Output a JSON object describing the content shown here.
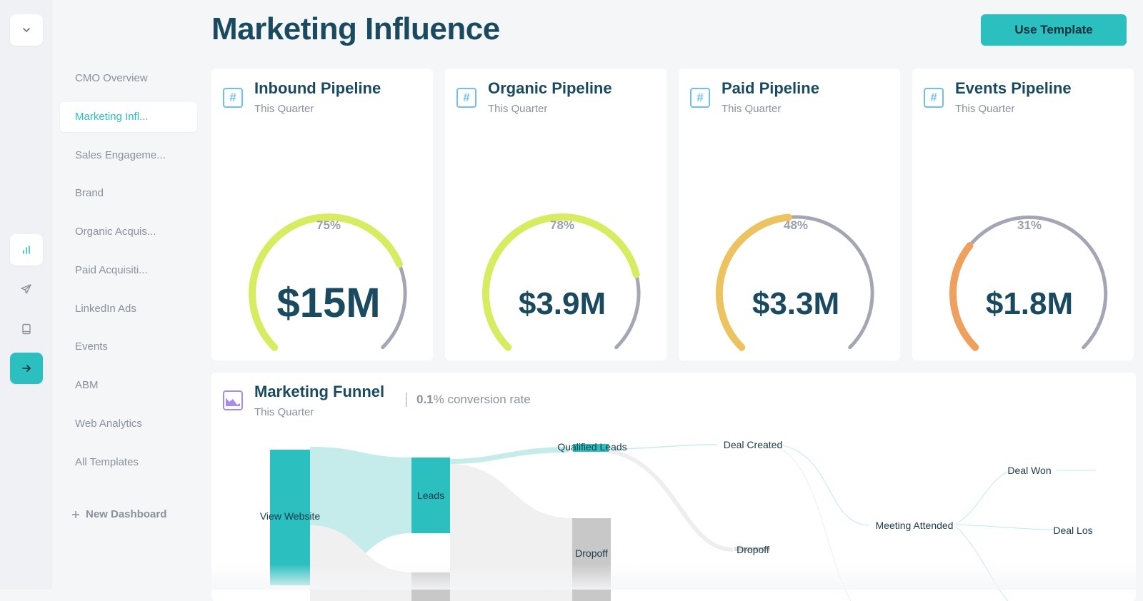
{
  "page": {
    "title": "Marketing Influence",
    "use_template_label": "Use Template"
  },
  "rail": {
    "icons": [
      "chevron-down-icon",
      "bar-chart-icon",
      "send-icon",
      "book-icon",
      "arrow-right-icon"
    ]
  },
  "sidebar": {
    "items": [
      {
        "label": "CMO Overview",
        "active": false
      },
      {
        "label": "Marketing Infl...",
        "active": true
      },
      {
        "label": "Sales Engageme...",
        "active": false
      },
      {
        "label": "Brand",
        "active": false
      },
      {
        "label": "Organic Acquis...",
        "active": false
      },
      {
        "label": "Paid Acquisiti...",
        "active": false
      },
      {
        "label": "LinkedIn Ads",
        "active": false
      },
      {
        "label": "Events",
        "active": false
      },
      {
        "label": "ABM",
        "active": false
      },
      {
        "label": "Web Analytics",
        "active": false
      },
      {
        "label": "All Templates",
        "active": false
      }
    ],
    "new_dashboard_label": "New Dashboard"
  },
  "cards": [
    {
      "title": "Inbound Pipeline",
      "subtitle": "This Quarter",
      "percent_label": "75%",
      "percent": 75,
      "value": "$15M",
      "color": "#d7ec5f"
    },
    {
      "title": "Organic Pipeline",
      "subtitle": "This Quarter",
      "percent_label": "78%",
      "percent": 78,
      "value": "$3.9M",
      "color": "#d7ec5f"
    },
    {
      "title": "Paid Pipeline",
      "subtitle": "This Quarter",
      "percent_label": "48%",
      "percent": 48,
      "value": "$3.3M",
      "color": "#ecc35e"
    },
    {
      "title": "Events Pipeline",
      "subtitle": "This Quarter",
      "percent_label": "31%",
      "percent": 31,
      "value": "$1.8M",
      "color": "#f0a05e"
    }
  ],
  "funnel": {
    "title": "Marketing Funnel",
    "subtitle": "This Quarter",
    "rate_value": "0.1",
    "rate_suffix": "% conversion rate",
    "nodes": {
      "view_website": "View Website",
      "leads": "Leads",
      "qualified_leads": "Qualified Leads",
      "dropoff_1": "Dropoff",
      "deal_created": "Deal Created",
      "dropoff_2": "Dropoff",
      "meeting_attended": "Meeting Attended",
      "deal_won": "Deal Won",
      "deal_lost": "Deal Los"
    }
  },
  "colors": {
    "accent": "#2bbfbf",
    "track": "#a4a6b3",
    "title": "#1a4a5f",
    "muted": "#8a919c"
  }
}
